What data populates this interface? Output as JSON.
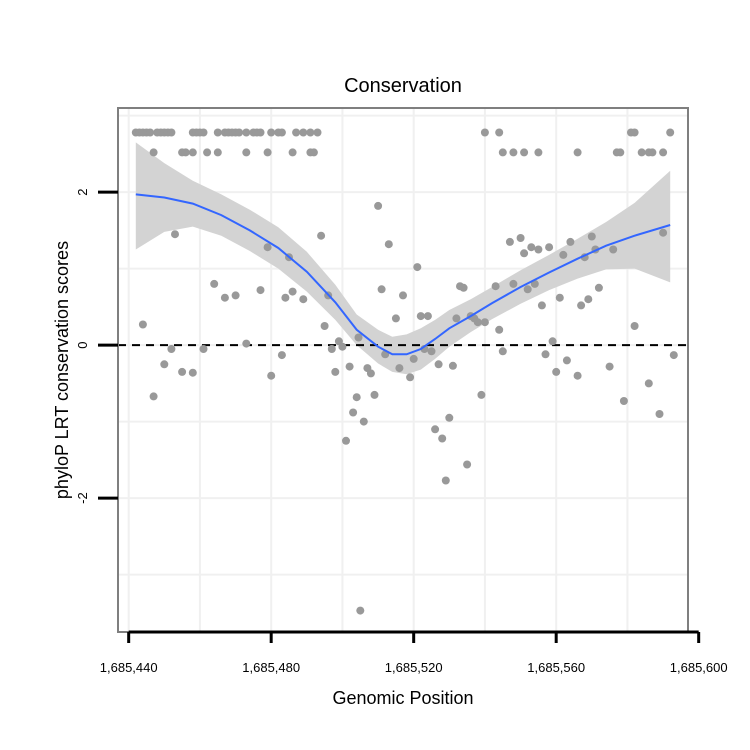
{
  "chart_data": {
    "type": "scatter",
    "title": "Conservation",
    "xlabel": "Genomic Position",
    "ylabel": "phyloP LRT conservation scores",
    "xlim": [
      1685437,
      1685597
    ],
    "ylim": [
      -3.75,
      3.1
    ],
    "x_ticks": [
      1685440,
      1685480,
      1685520,
      1685560,
      1685600
    ],
    "x_tick_labels": [
      "1,685,440",
      "1,685,480",
      "1,685,520",
      "1,685,560",
      "1,685,600"
    ],
    "y_ticks": [
      -2,
      0,
      2
    ],
    "y_tick_labels": [
      "-2",
      "0",
      "2"
    ],
    "grid": true,
    "reference_line": {
      "y": 0,
      "style": "dashed"
    },
    "colors": {
      "points": "#999999",
      "smooth": "#3366ff",
      "ribbon": "#d3d3d3",
      "grid": "#f0f0f0",
      "panel_border": "#7f7f7f"
    },
    "series": [
      {
        "name": "scores",
        "kind": "points",
        "points": [
          [
            1685442,
            2.78
          ],
          [
            1685443,
            2.78
          ],
          [
            1685444,
            2.78
          ],
          [
            1685445,
            2.78
          ],
          [
            1685446,
            2.78
          ],
          [
            1685448,
            2.78
          ],
          [
            1685449,
            2.78
          ],
          [
            1685450,
            2.78
          ],
          [
            1685451,
            2.78
          ],
          [
            1685452,
            2.78
          ],
          [
            1685458,
            2.78
          ],
          [
            1685459,
            2.78
          ],
          [
            1685460,
            2.78
          ],
          [
            1685461,
            2.78
          ],
          [
            1685465,
            2.78
          ],
          [
            1685467,
            2.78
          ],
          [
            1685468,
            2.78
          ],
          [
            1685469,
            2.78
          ],
          [
            1685470,
            2.78
          ],
          [
            1685471,
            2.78
          ],
          [
            1685473,
            2.78
          ],
          [
            1685475,
            2.78
          ],
          [
            1685476,
            2.78
          ],
          [
            1685477,
            2.78
          ],
          [
            1685480,
            2.78
          ],
          [
            1685482,
            2.78
          ],
          [
            1685483,
            2.78
          ],
          [
            1685487,
            2.78
          ],
          [
            1685489,
            2.78
          ],
          [
            1685491,
            2.78
          ],
          [
            1685493,
            2.78
          ],
          [
            1685540,
            2.78
          ],
          [
            1685544,
            2.78
          ],
          [
            1685581,
            2.78
          ],
          [
            1685582,
            2.78
          ],
          [
            1685592,
            2.78
          ],
          [
            1685447,
            2.52
          ],
          [
            1685455,
            2.52
          ],
          [
            1685456,
            2.52
          ],
          [
            1685458,
            2.52
          ],
          [
            1685462,
            2.52
          ],
          [
            1685465,
            2.52
          ],
          [
            1685473,
            2.52
          ],
          [
            1685479,
            2.52
          ],
          [
            1685486,
            2.52
          ],
          [
            1685491,
            2.52
          ],
          [
            1685492,
            2.52
          ],
          [
            1685545,
            2.52
          ],
          [
            1685548,
            2.52
          ],
          [
            1685551,
            2.52
          ],
          [
            1685555,
            2.52
          ],
          [
            1685566,
            2.52
          ],
          [
            1685577,
            2.52
          ],
          [
            1685578,
            2.52
          ],
          [
            1685584,
            2.52
          ],
          [
            1685586,
            2.52
          ],
          [
            1685587,
            2.52
          ],
          [
            1685590,
            2.52
          ],
          [
            1685444,
            0.27
          ],
          [
            1685447,
            -0.67
          ],
          [
            1685450,
            -0.25
          ],
          [
            1685452,
            -0.05
          ],
          [
            1685453,
            1.45
          ],
          [
            1685455,
            -0.35
          ],
          [
            1685458,
            -0.36
          ],
          [
            1685461,
            -0.05
          ],
          [
            1685464,
            0.8
          ],
          [
            1685467,
            0.62
          ],
          [
            1685470,
            0.65
          ],
          [
            1685473,
            0.02
          ],
          [
            1685477,
            0.72
          ],
          [
            1685479,
            1.28
          ],
          [
            1685480,
            -0.4
          ],
          [
            1685483,
            -0.13
          ],
          [
            1685484,
            0.62
          ],
          [
            1685485,
            1.15
          ],
          [
            1685486,
            0.7
          ],
          [
            1685489,
            0.6
          ],
          [
            1685494,
            1.43
          ],
          [
            1685495,
            0.25
          ],
          [
            1685496,
            0.65
          ],
          [
            1685497,
            -0.05
          ],
          [
            1685498,
            -0.35
          ],
          [
            1685499,
            0.05
          ],
          [
            1685500,
            -0.02
          ],
          [
            1685501,
            -1.25
          ],
          [
            1685502,
            -0.28
          ],
          [
            1685503,
            -0.88
          ],
          [
            1685504,
            -0.68
          ],
          [
            1685504.5,
            0.1
          ],
          [
            1685505,
            -3.47
          ],
          [
            1685506,
            -1.0
          ],
          [
            1685507,
            -0.3
          ],
          [
            1685508,
            -0.37
          ],
          [
            1685509,
            -0.65
          ],
          [
            1685510,
            1.82
          ],
          [
            1685511,
            0.73
          ],
          [
            1685512,
            -0.12
          ],
          [
            1685513,
            1.32
          ],
          [
            1685515,
            0.35
          ],
          [
            1685516,
            -0.3
          ],
          [
            1685517,
            0.65
          ],
          [
            1685519,
            -0.42
          ],
          [
            1685520,
            -0.18
          ],
          [
            1685521,
            1.02
          ],
          [
            1685522,
            0.38
          ],
          [
            1685523,
            -0.05
          ],
          [
            1685524,
            0.38
          ],
          [
            1685525,
            -0.08
          ],
          [
            1685526,
            -1.1
          ],
          [
            1685527,
            -0.25
          ],
          [
            1685528,
            -1.22
          ],
          [
            1685529,
            -1.77
          ],
          [
            1685530,
            -0.95
          ],
          [
            1685531,
            -0.27
          ],
          [
            1685532,
            0.35
          ],
          [
            1685533,
            0.77
          ],
          [
            1685534,
            0.75
          ],
          [
            1685535,
            -1.56
          ],
          [
            1685536,
            0.38
          ],
          [
            1685537,
            0.35
          ],
          [
            1685538,
            0.3
          ],
          [
            1685539,
            -0.65
          ],
          [
            1685540,
            0.3
          ],
          [
            1685543,
            0.77
          ],
          [
            1685544,
            0.2
          ],
          [
            1685545,
            -0.08
          ],
          [
            1685547,
            1.35
          ],
          [
            1685548,
            0.8
          ],
          [
            1685550,
            1.4
          ],
          [
            1685551,
            1.2
          ],
          [
            1685552,
            0.73
          ],
          [
            1685553,
            1.28
          ],
          [
            1685554,
            0.8
          ],
          [
            1685555,
            1.25
          ],
          [
            1685556,
            0.52
          ],
          [
            1685557,
            -0.12
          ],
          [
            1685558,
            1.28
          ],
          [
            1685559,
            0.05
          ],
          [
            1685560,
            -0.35
          ],
          [
            1685561,
            0.62
          ],
          [
            1685562,
            1.18
          ],
          [
            1685563,
            -0.2
          ],
          [
            1685564,
            1.35
          ],
          [
            1685566,
            -0.4
          ],
          [
            1685567,
            0.52
          ],
          [
            1685568,
            1.15
          ],
          [
            1685569,
            0.6
          ],
          [
            1685570,
            1.42
          ],
          [
            1685571,
            1.25
          ],
          [
            1685572,
            0.75
          ],
          [
            1685575,
            -0.28
          ],
          [
            1685576,
            1.25
          ],
          [
            1685579,
            -0.73
          ],
          [
            1685582,
            0.25
          ],
          [
            1685586,
            -0.5
          ],
          [
            1685589,
            -0.9
          ],
          [
            1685590,
            1.47
          ],
          [
            1685593,
            -0.13
          ]
        ]
      },
      {
        "name": "smooth",
        "kind": "line",
        "x": [
          1685442,
          1685450,
          1685458,
          1685466,
          1685474,
          1685482,
          1685490,
          1685498,
          1685504,
          1685510,
          1685514,
          1685518,
          1685522,
          1685526,
          1685530,
          1685536,
          1685542,
          1685550,
          1685558,
          1685566,
          1685574,
          1685582,
          1685592
        ],
        "y": [
          1.97,
          1.93,
          1.85,
          1.7,
          1.5,
          1.27,
          0.96,
          0.56,
          0.2,
          -0.02,
          -0.12,
          -0.12,
          -0.05,
          0.08,
          0.22,
          0.38,
          0.55,
          0.76,
          0.95,
          1.13,
          1.3,
          1.43,
          1.57
        ],
        "lower": [
          1.25,
          1.48,
          1.55,
          1.43,
          1.23,
          1.0,
          0.7,
          0.33,
          0.0,
          -0.24,
          -0.35,
          -0.38,
          -0.32,
          -0.18,
          -0.02,
          0.17,
          0.34,
          0.54,
          0.72,
          0.87,
          0.99,
          1.0,
          0.82
        ],
        "upper": [
          2.65,
          2.38,
          2.15,
          1.97,
          1.77,
          1.54,
          1.22,
          0.79,
          0.4,
          0.2,
          0.11,
          0.14,
          0.22,
          0.33,
          0.46,
          0.6,
          0.76,
          0.98,
          1.18,
          1.39,
          1.61,
          1.86,
          2.28
        ]
      }
    ]
  }
}
